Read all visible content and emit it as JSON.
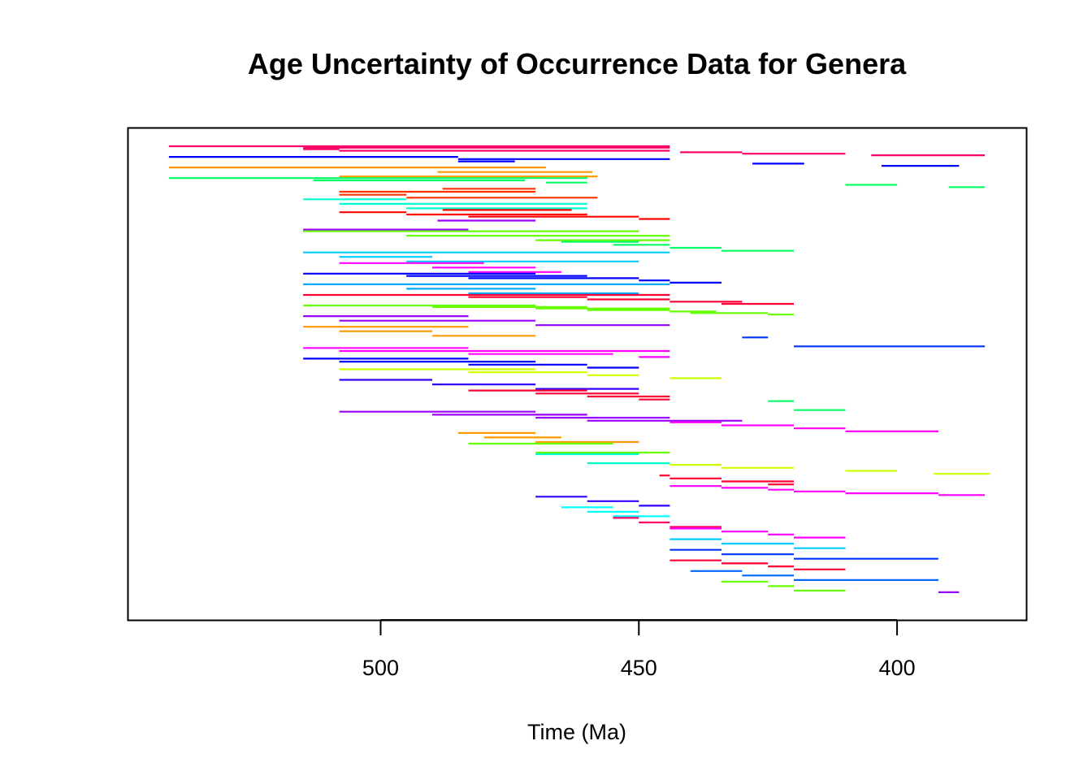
{
  "chart_data": {
    "type": "range-bar",
    "title": "Age Uncertainty of Occurrence Data for Genera",
    "xlabel": "Time (Ma)",
    "ylabel": "",
    "x_reversed": true,
    "xlim": [
      549,
      375
    ],
    "x_ticks": [
      500,
      450,
      400
    ],
    "x_tick_labels": [
      "500",
      "450",
      "400"
    ],
    "grid": false,
    "legend": "none",
    "palette": [
      "#ff0066",
      "#0000ff",
      "#ff9900",
      "#00ff66",
      "#00ffff",
      "#ff0000",
      "#ff3300",
      "#00ffcc",
      "#9900ff",
      "#66ff00",
      "#00ccff",
      "#ff00cc",
      "#0066ff",
      "#ccff00",
      "#ffaa00",
      "#ff00ff",
      "#3300ff",
      "#00ff99",
      "#ff0033",
      "#99ff00",
      "#0033ff",
      "#ff00ff"
    ],
    "genera": [
      {
        "color": "#ff0066",
        "ranges": [
          [
            541,
            444
          ],
          [
            515,
            444
          ],
          [
            515,
            508
          ],
          [
            508,
            444
          ],
          [
            442,
            430
          ],
          [
            430,
            410
          ],
          [
            405,
            383
          ]
        ]
      },
      {
        "color": "#0000ff",
        "ranges": [
          [
            541,
            485
          ],
          [
            485,
            444
          ],
          [
            485,
            474
          ],
          [
            428,
            418
          ],
          [
            403,
            388
          ]
        ]
      },
      {
        "color": "#ff9900",
        "ranges": [
          [
            541,
            468
          ],
          [
            489,
            459
          ],
          [
            508,
            458
          ]
        ]
      },
      {
        "color": "#00ff66",
        "ranges": [
          [
            541,
            460
          ],
          [
            513,
            472
          ],
          [
            468,
            460
          ],
          [
            410,
            400
          ],
          [
            390,
            383
          ]
        ]
      },
      {
        "color": "#ff3300",
        "ranges": [
          [
            488,
            470
          ],
          [
            508,
            470
          ],
          [
            508,
            495
          ],
          [
            495,
            458
          ]
        ]
      },
      {
        "color": "#00ffcc",
        "ranges": [
          [
            515,
            495
          ],
          [
            508,
            460
          ],
          [
            495,
            460
          ]
        ]
      },
      {
        "color": "#ff0000",
        "ranges": [
          [
            488,
            463
          ],
          [
            508,
            495
          ],
          [
            495,
            460
          ],
          [
            483,
            450
          ],
          [
            450,
            444
          ]
        ]
      },
      {
        "color": "#9900ff",
        "ranges": [
          [
            489,
            470
          ],
          [
            515,
            483
          ]
        ]
      },
      {
        "color": "#66ff00",
        "ranges": [
          [
            515,
            450
          ],
          [
            495,
            444
          ],
          [
            470,
            444
          ]
        ]
      },
      {
        "color": "#00ff66",
        "ranges": [
          [
            465,
            450
          ],
          [
            455,
            444
          ],
          [
            444,
            434
          ],
          [
            434,
            420
          ]
        ]
      },
      {
        "color": "#00ccff",
        "ranges": [
          [
            515,
            444
          ],
          [
            508,
            490
          ],
          [
            495,
            450
          ]
        ]
      },
      {
        "color": "#ff00ff",
        "ranges": [
          [
            508,
            480
          ],
          [
            490,
            470
          ],
          [
            483,
            465
          ]
        ]
      },
      {
        "color": "#0000ff",
        "ranges": [
          [
            515,
            470
          ],
          [
            495,
            460
          ],
          [
            483,
            450
          ],
          [
            450,
            444
          ],
          [
            444,
            434
          ]
        ]
      },
      {
        "color": "#00aaff",
        "ranges": [
          [
            515,
            444
          ],
          [
            495,
            470
          ],
          [
            483,
            450
          ]
        ]
      },
      {
        "color": "#ff0033",
        "ranges": [
          [
            515,
            444
          ],
          [
            483,
            460
          ],
          [
            460,
            444
          ],
          [
            444,
            430
          ],
          [
            434,
            420
          ]
        ]
      },
      {
        "color": "#66ff00",
        "ranges": [
          [
            515,
            470
          ],
          [
            490,
            460
          ],
          [
            470,
            444
          ],
          [
            460,
            444
          ],
          [
            444,
            435
          ],
          [
            440,
            425
          ],
          [
            425,
            420
          ]
        ]
      },
      {
        "color": "#9900ff",
        "ranges": [
          [
            515,
            483
          ],
          [
            508,
            470
          ],
          [
            470,
            444
          ]
        ]
      },
      {
        "color": "#ff9900",
        "ranges": [
          [
            515,
            483
          ],
          [
            508,
            490
          ],
          [
            490,
            470
          ]
        ]
      },
      {
        "color": "#0033ff",
        "ranges": [
          [
            430,
            425
          ],
          [
            420,
            383
          ]
        ]
      },
      {
        "color": "#ff00ff",
        "ranges": [
          [
            515,
            483
          ],
          [
            508,
            444
          ],
          [
            483,
            455
          ],
          [
            450,
            444
          ]
        ]
      },
      {
        "color": "#0000ff",
        "ranges": [
          [
            515,
            483
          ],
          [
            508,
            470
          ],
          [
            483,
            460
          ],
          [
            460,
            450
          ]
        ]
      },
      {
        "color": "#ccff00",
        "ranges": [
          [
            508,
            470
          ],
          [
            483,
            460
          ],
          [
            460,
            450
          ],
          [
            444,
            434
          ]
        ]
      },
      {
        "color": "#3300ff",
        "ranges": [
          [
            508,
            490
          ],
          [
            490,
            470
          ],
          [
            470,
            450
          ]
        ]
      },
      {
        "color": "#ff0033",
        "ranges": [
          [
            483,
            460
          ],
          [
            470,
            450
          ],
          [
            460,
            444
          ],
          [
            450,
            444
          ]
        ]
      },
      {
        "color": "#00ff66",
        "ranges": [
          [
            425,
            420
          ],
          [
            420,
            410
          ]
        ]
      },
      {
        "color": "#9900ff",
        "ranges": [
          [
            508,
            470
          ],
          [
            490,
            460
          ],
          [
            470,
            444
          ],
          [
            460,
            430
          ]
        ]
      },
      {
        "color": "#ff00ff",
        "ranges": [
          [
            444,
            434
          ],
          [
            434,
            420
          ],
          [
            420,
            410
          ],
          [
            410,
            392
          ]
        ]
      },
      {
        "color": "#ff9900",
        "ranges": [
          [
            485,
            470
          ],
          [
            480,
            465
          ],
          [
            470,
            450
          ]
        ]
      },
      {
        "color": "#66ff00",
        "ranges": [
          [
            483,
            455
          ],
          [
            470,
            444
          ]
        ]
      },
      {
        "color": "#00ffcc",
        "ranges": [
          [
            470,
            450
          ],
          [
            460,
            444
          ]
        ]
      },
      {
        "color": "#ccff00",
        "ranges": [
          [
            444,
            434
          ],
          [
            434,
            420
          ],
          [
            410,
            400
          ],
          [
            393,
            382
          ]
        ]
      },
      {
        "color": "#ff0033",
        "ranges": [
          [
            446,
            444
          ],
          [
            444,
            434
          ],
          [
            434,
            420
          ],
          [
            425,
            420
          ]
        ]
      },
      {
        "color": "#ff00ff",
        "ranges": [
          [
            444,
            434
          ],
          [
            434,
            425
          ],
          [
            425,
            420
          ],
          [
            420,
            410
          ],
          [
            410,
            392
          ],
          [
            392,
            383
          ]
        ]
      },
      {
        "color": "#3300ff",
        "ranges": [
          [
            470,
            460
          ],
          [
            460,
            450
          ],
          [
            450,
            444
          ]
        ]
      },
      {
        "color": "#00ffff",
        "ranges": [
          [
            465,
            455
          ],
          [
            460,
            450
          ],
          [
            455,
            444
          ]
        ]
      },
      {
        "color": "#ff0066",
        "ranges": [
          [
            455,
            450
          ],
          [
            450,
            444
          ],
          [
            444,
            434
          ]
        ]
      },
      {
        "color": "#ff00ff",
        "ranges": [
          [
            444,
            434
          ],
          [
            434,
            425
          ],
          [
            425,
            420
          ],
          [
            420,
            410
          ]
        ]
      },
      {
        "color": "#00ccff",
        "ranges": [
          [
            444,
            434
          ],
          [
            434,
            420
          ],
          [
            420,
            410
          ]
        ]
      },
      {
        "color": "#0033ff",
        "ranges": [
          [
            444,
            434
          ],
          [
            434,
            420
          ],
          [
            420,
            392
          ]
        ]
      },
      {
        "color": "#ff0033",
        "ranges": [
          [
            444,
            434
          ],
          [
            434,
            425
          ],
          [
            425,
            420
          ],
          [
            420,
            410
          ]
        ]
      },
      {
        "color": "#0066ff",
        "ranges": [
          [
            440,
            430
          ],
          [
            430,
            420
          ],
          [
            420,
            392
          ]
        ]
      },
      {
        "color": "#66ff00",
        "ranges": [
          [
            434,
            425
          ],
          [
            425,
            420
          ],
          [
            420,
            410
          ]
        ]
      },
      {
        "color": "#9900ff",
        "ranges": [
          [
            392,
            388
          ]
        ]
      }
    ]
  }
}
